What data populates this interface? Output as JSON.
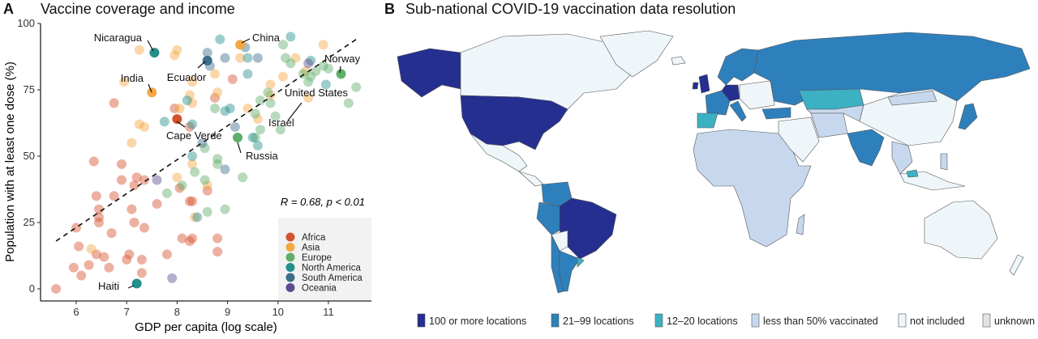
{
  "panel_a": {
    "letter": "A",
    "title": "Vaccine coverage and income",
    "stat_r": "R = 0.68, ",
    "stat_p": "p < 0.01"
  },
  "panel_b": {
    "letter": "B",
    "title": "Sub-national COVID-19 vaccination data resolution",
    "legend": [
      {
        "label": "100 or more locations",
        "color": "#252F8F"
      },
      {
        "label": "21–99 locations",
        "color": "#2E80BC"
      },
      {
        "label": "12–20 locations",
        "color": "#3CB1C3"
      },
      {
        "label": "less than 50% vaccinated",
        "color": "#C7D8EE"
      },
      {
        "label": "not included",
        "color": "#EEF6FA"
      },
      {
        "label": "unknown",
        "color": "#E3E3E3"
      }
    ]
  },
  "chart_data": {
    "type": "scatter",
    "title": "Vaccine coverage and income",
    "xlabel": "GDP per capita (log scale)",
    "ylabel": "Population with at least one dose (%)",
    "xlim": [
      5.3,
      11.9
    ],
    "ylim": [
      -4,
      100
    ],
    "xticks": [
      "6",
      "7",
      "8",
      "9",
      "10",
      "11"
    ],
    "yticks": [
      "0",
      "25",
      "50",
      "75",
      "100"
    ],
    "grid": false,
    "legend_placement": "bottom-right",
    "regions": [
      {
        "name": "Africa",
        "color": "#D4532F"
      },
      {
        "name": "Asia",
        "color": "#F4A742"
      },
      {
        "name": "Europe",
        "color": "#5FAE6A"
      },
      {
        "name": "North America",
        "color": "#24908C"
      },
      {
        "name": "South America",
        "color": "#3C6E8A"
      },
      {
        "name": "Oceania",
        "color": "#5E4B91"
      }
    ],
    "trend_line": {
      "x": [
        5.6,
        11.55
      ],
      "y": [
        18,
        94
      ],
      "style": "dashed"
    },
    "annotation": "R = 0.68, p < 0.01",
    "points": [
      [
        5.6,
        0,
        "Africa"
      ],
      [
        5.95,
        8,
        "Africa"
      ],
      [
        6.1,
        5,
        "Africa"
      ],
      [
        6.05,
        16,
        "Africa"
      ],
      [
        6.25,
        9,
        "Africa"
      ],
      [
        6.4,
        13,
        "Africa"
      ],
      [
        6.55,
        12,
        "Africa"
      ],
      [
        6.65,
        8,
        "Africa"
      ],
      [
        6.7,
        21,
        "Africa"
      ],
      [
        6.45,
        25,
        "Africa"
      ],
      [
        6.45,
        27,
        "Africa"
      ],
      [
        6.45,
        30,
        "Africa"
      ],
      [
        6.4,
        35,
        "Africa"
      ],
      [
        6.35,
        48,
        "Africa"
      ],
      [
        6.0,
        23,
        "Africa"
      ],
      [
        6.75,
        35,
        "Africa"
      ],
      [
        6.9,
        41,
        "Africa"
      ],
      [
        6.9,
        47,
        "Africa"
      ],
      [
        7.0,
        11,
        "Africa"
      ],
      [
        7.05,
        13,
        "Africa"
      ],
      [
        7.1,
        30,
        "Africa"
      ],
      [
        7.15,
        25,
        "Africa"
      ],
      [
        7.15,
        39,
        "Africa"
      ],
      [
        7.2,
        42,
        "Africa"
      ],
      [
        7.3,
        11,
        "Africa"
      ],
      [
        7.3,
        6,
        "Africa"
      ],
      [
        7.35,
        23,
        "Africa"
      ],
      [
        7.35,
        41,
        "Africa"
      ],
      [
        7.6,
        32,
        "Africa"
      ],
      [
        7.8,
        13,
        "Africa"
      ],
      [
        8.1,
        19,
        "Africa"
      ],
      [
        8.25,
        18,
        "Africa"
      ],
      [
        8.3,
        19,
        "Africa"
      ],
      [
        8.25,
        33,
        "Africa"
      ],
      [
        8.3,
        33,
        "Africa"
      ],
      [
        8.6,
        37,
        "Africa"
      ],
      [
        8.8,
        19,
        "Africa"
      ],
      [
        8.8,
        14,
        "Africa"
      ],
      [
        8.05,
        38,
        "Africa"
      ],
      [
        7.95,
        68,
        "Africa"
      ],
      [
        8.25,
        61,
        "Africa"
      ],
      [
        8.75,
        72,
        "Africa"
      ],
      [
        9.1,
        79,
        "Africa"
      ],
      [
        6.75,
        70,
        "Africa"
      ],
      [
        6.3,
        15,
        "Asia"
      ],
      [
        7.1,
        55,
        "Asia"
      ],
      [
        7.25,
        62,
        "Asia"
      ],
      [
        7.35,
        61,
        "Asia"
      ],
      [
        7.25,
        90,
        "Asia"
      ],
      [
        6.95,
        78,
        "Asia"
      ],
      [
        7.95,
        88,
        "Asia"
      ],
      [
        8.0,
        90,
        "Asia"
      ],
      [
        8.05,
        68,
        "Asia"
      ],
      [
        8.25,
        73,
        "Asia"
      ],
      [
        8.3,
        70,
        "Asia"
      ],
      [
        8.3,
        78,
        "Asia"
      ],
      [
        8.75,
        81,
        "Asia"
      ],
      [
        8.8,
        74,
        "Asia"
      ],
      [
        8.0,
        42,
        "Asia"
      ],
      [
        8.3,
        47,
        "Asia"
      ],
      [
        8.35,
        27,
        "Asia"
      ],
      [
        8.6,
        39,
        "Asia"
      ],
      [
        9.25,
        87,
        "Asia"
      ],
      [
        9.4,
        68,
        "Asia"
      ],
      [
        9.6,
        64,
        "Asia"
      ],
      [
        9.85,
        77,
        "Asia"
      ],
      [
        9.85,
        73,
        "Asia"
      ],
      [
        10.1,
        80,
        "Asia"
      ],
      [
        10.35,
        87,
        "Asia"
      ],
      [
        10.55,
        82,
        "Asia"
      ],
      [
        10.9,
        92,
        "Asia"
      ],
      [
        10.6,
        72,
        "Asia"
      ],
      [
        7.8,
        36,
        "Europe"
      ],
      [
        8.1,
        39,
        "Europe"
      ],
      [
        8.35,
        44,
        "Europe"
      ],
      [
        8.55,
        41,
        "Europe"
      ],
      [
        8.55,
        53,
        "Europe"
      ],
      [
        8.6,
        29,
        "Europe"
      ],
      [
        8.8,
        49,
        "Europe"
      ],
      [
        8.8,
        47,
        "Europe"
      ],
      [
        8.95,
        30,
        "Europe"
      ],
      [
        9.3,
        42,
        "Europe"
      ],
      [
        8.75,
        68,
        "Europe"
      ],
      [
        9.55,
        57,
        "Europe"
      ],
      [
        9.55,
        66,
        "Europe"
      ],
      [
        9.65,
        60,
        "Europe"
      ],
      [
        9.65,
        71,
        "Europe"
      ],
      [
        9.8,
        74,
        "Europe"
      ],
      [
        9.85,
        70,
        "Europe"
      ],
      [
        9.95,
        65,
        "Europe"
      ],
      [
        10.05,
        60,
        "Europe"
      ],
      [
        10.15,
        87,
        "Europe"
      ],
      [
        10.25,
        85,
        "Europe"
      ],
      [
        10.1,
        92,
        "Europe"
      ],
      [
        10.5,
        81,
        "Europe"
      ],
      [
        10.6,
        78,
        "Europe"
      ],
      [
        10.65,
        80,
        "Europe"
      ],
      [
        10.75,
        82,
        "Europe"
      ],
      [
        10.9,
        84,
        "Europe"
      ],
      [
        11.0,
        83,
        "Europe"
      ],
      [
        11.4,
        70,
        "Europe"
      ],
      [
        11.55,
        76,
        "Europe"
      ],
      [
        7.75,
        63,
        "North America"
      ],
      [
        8.2,
        71,
        "North America"
      ],
      [
        8.3,
        50,
        "North America"
      ],
      [
        8.3,
        62,
        "North America"
      ],
      [
        8.4,
        27,
        "North America"
      ],
      [
        8.95,
        67,
        "North America"
      ],
      [
        9.05,
        68,
        "North America"
      ],
      [
        9.4,
        81,
        "North America"
      ],
      [
        9.4,
        87,
        "North America"
      ],
      [
        8.85,
        94,
        "North America"
      ],
      [
        10.25,
        95,
        "North America"
      ],
      [
        10.65,
        86,
        "North America"
      ],
      [
        10.95,
        77,
        "North America"
      ],
      [
        9.6,
        54,
        "North America"
      ],
      [
        9.5,
        57,
        "North America"
      ],
      [
        8.6,
        89,
        "South America"
      ],
      [
        8.65,
        84,
        "South America"
      ],
      [
        8.95,
        87,
        "South America"
      ],
      [
        9.35,
        91,
        "South America"
      ],
      [
        9.6,
        87,
        "South America"
      ],
      [
        8.5,
        55,
        "South America"
      ],
      [
        8.95,
        45,
        "South America"
      ],
      [
        9.15,
        61,
        "South America"
      ],
      [
        7.6,
        41,
        "Oceania"
      ],
      [
        7.9,
        4,
        "Oceania"
      ],
      [
        10.6,
        85,
        "Oceania"
      ]
    ],
    "highlighted": [
      {
        "label": "Nicaragua",
        "x": 7.55,
        "y": 89,
        "region": "North America"
      },
      {
        "label": "China",
        "x": 9.25,
        "y": 92,
        "region": "Asia"
      },
      {
        "label": "India",
        "x": 7.5,
        "y": 74,
        "region": "Asia"
      },
      {
        "label": "Ecuador",
        "x": 8.6,
        "y": 86,
        "region": "South America"
      },
      {
        "label": "Norway",
        "x": 11.25,
        "y": 81,
        "region": "Europe"
      },
      {
        "label": "United States",
        "x": 10.6,
        "y": 73,
        "region": "North America"
      },
      {
        "label": "Israel",
        "x": 10.3,
        "y": 66,
        "region": "Asia"
      },
      {
        "label": "Cape Verde",
        "x": 8.0,
        "y": 64,
        "region": "Africa"
      },
      {
        "label": "Russia",
        "x": 9.2,
        "y": 57,
        "region": "Europe"
      },
      {
        "label": "Haiti",
        "x": 7.2,
        "y": 2,
        "region": "North America"
      }
    ]
  }
}
